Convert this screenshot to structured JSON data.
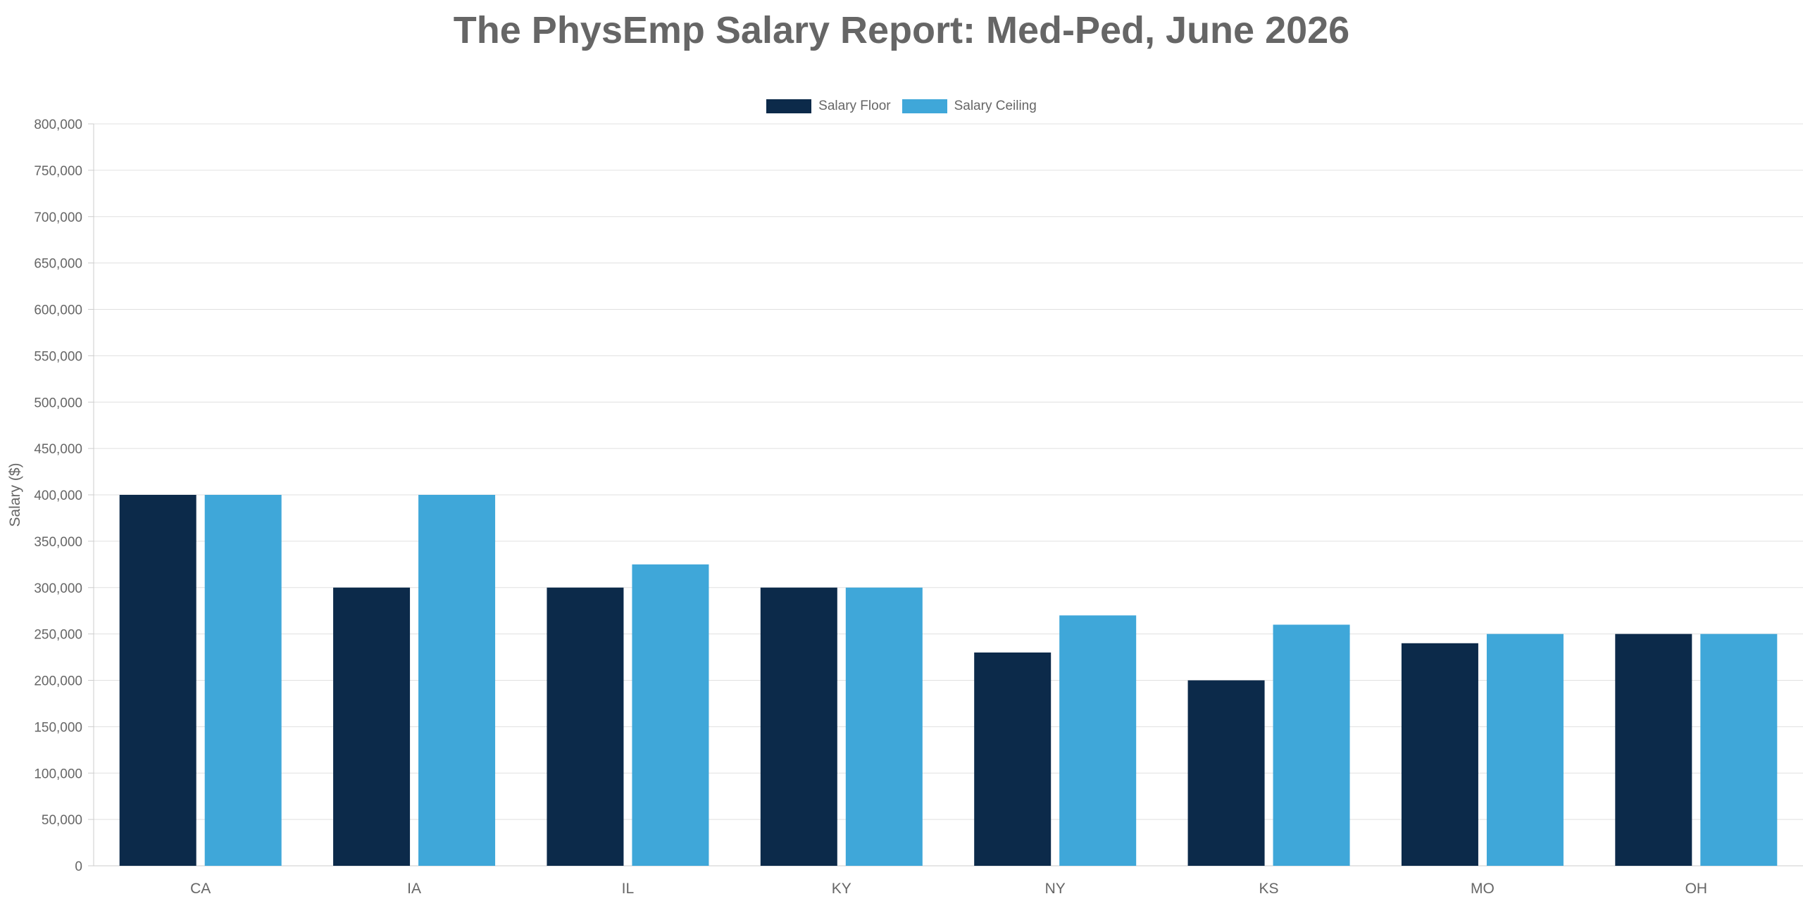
{
  "chart_data": {
    "type": "bar",
    "title": "The PhysEmp Salary Report: Med-Ped, June 2026",
    "xlabel": "",
    "ylabel": "Salary ($)",
    "ylim": [
      0,
      800000
    ],
    "yticks": [
      0,
      50000,
      100000,
      150000,
      200000,
      250000,
      300000,
      350000,
      400000,
      450000,
      500000,
      550000,
      600000,
      650000,
      700000,
      750000,
      800000
    ],
    "ytick_labels": [
      "0",
      "50,000",
      "100,000",
      "150,000",
      "200,000",
      "250,000",
      "300,000",
      "350,000",
      "400,000",
      "450,000",
      "500,000",
      "550,000",
      "600,000",
      "650,000",
      "700,000",
      "750,000",
      "800,000"
    ],
    "categories": [
      "CA",
      "IA",
      "IL",
      "KY",
      "NY",
      "KS",
      "MO",
      "OH"
    ],
    "series": [
      {
        "name": "Salary Floor",
        "color": "#0c2a4a",
        "values": [
          400000,
          300000,
          300000,
          300000,
          230000,
          200000,
          240000,
          250000
        ]
      },
      {
        "name": "Salary Ceiling",
        "color": "#3fa7d9",
        "values": [
          400000,
          400000,
          325000,
          300000,
          270000,
          260000,
          250000,
          250000
        ]
      }
    ],
    "grid": true,
    "legend_position": "top-center"
  }
}
